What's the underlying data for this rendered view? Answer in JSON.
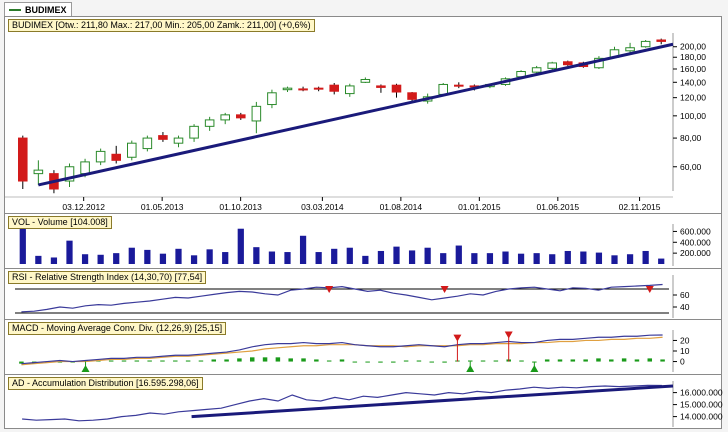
{
  "tab": {
    "label": "BUDIMEX",
    "color": "#2a7a2a"
  },
  "colors": {
    "up": "#2a8a2a",
    "down": "#d21a1a",
    "trend": "#1a1a7a",
    "volume": "#1a1a9a",
    "line": "#3a3a9a",
    "signal": "#e0a040",
    "hist": "#1a9a1a"
  },
  "chart_data": [
    {
      "type": "candlestick",
      "title": "BUDIMEX [Otw.: 211,80  Max.: 217,00  Min.: 205,00  Zamk.: 211,00] (+0,6%)",
      "x_tick_labels": [
        "03.12.2012",
        "01.05.2013",
        "01.10.2013",
        "03.03.2014",
        "01.08.2014",
        "01.01.2015",
        "01.06.2015",
        "02.11.2015"
      ],
      "y_tick_labels": [
        "60,00",
        "80,00",
        "100,00",
        "120,00",
        "140,00",
        "160,00",
        "180,00",
        "200,00"
      ],
      "y_ticks": [
        60,
        80,
        100,
        120,
        140,
        160,
        180,
        200
      ],
      "scale": "log",
      "ylim": [
        48,
        225
      ],
      "candles": [
        [
          80,
          82,
          48,
          52
        ],
        [
          56,
          64,
          50,
          58
        ],
        [
          56,
          58,
          46,
          48
        ],
        [
          52,
          62,
          49,
          60
        ],
        [
          56,
          65,
          54,
          63
        ],
        [
          63,
          72,
          61,
          70
        ],
        [
          68,
          74,
          62,
          64
        ],
        [
          66,
          78,
          64,
          76
        ],
        [
          72,
          82,
          70,
          80
        ],
        [
          82,
          85,
          77,
          79
        ],
        [
          76,
          82,
          73,
          80
        ],
        [
          80,
          92,
          77,
          90
        ],
        [
          90,
          99,
          86,
          96
        ],
        [
          96,
          103,
          92,
          101
        ],
        [
          101,
          103,
          96,
          98
        ],
        [
          95,
          115,
          84,
          110
        ],
        [
          112,
          130,
          108,
          126
        ],
        [
          130,
          134,
          127,
          132
        ],
        [
          131,
          134,
          128,
          130
        ],
        [
          132,
          134,
          128,
          131
        ],
        [
          136,
          139,
          124,
          128
        ],
        [
          125,
          138,
          121,
          135
        ],
        [
          140,
          147,
          139,
          144
        ],
        [
          135,
          137,
          126,
          133
        ],
        [
          136,
          138,
          120,
          127
        ],
        [
          126,
          127,
          115,
          118
        ],
        [
          116,
          125,
          113,
          121
        ],
        [
          124,
          139,
          123,
          137
        ],
        [
          136,
          140,
          132,
          135
        ],
        [
          135,
          137,
          129,
          134
        ],
        [
          134,
          138,
          132,
          137
        ],
        [
          137,
          147,
          135,
          145
        ],
        [
          148,
          158,
          146,
          156
        ],
        [
          155,
          165,
          152,
          162
        ],
        [
          161,
          172,
          159,
          170
        ],
        [
          172,
          174,
          165,
          167
        ],
        [
          170,
          172,
          162,
          164
        ],
        [
          162,
          182,
          160,
          178
        ],
        [
          180,
          200,
          178,
          194
        ],
        [
          192,
          208,
          188,
          198
        ],
        [
          200,
          214,
          198,
          211
        ],
        [
          214,
          217,
          205,
          211
        ]
      ],
      "trendline": [
        [
          "03.12.2012",
          50
        ],
        [
          "02.11.2015",
          195
        ]
      ]
    },
    {
      "type": "bar",
      "title": "VOL - Volume [104.008]",
      "y_tick_labels": [
        "200.000",
        "400.000",
        "600.000"
      ],
      "y_ticks": [
        200000,
        400000,
        600000
      ],
      "ylim": [
        0,
        700000
      ],
      "values": [
        650000,
        150000,
        120000,
        430000,
        180000,
        170000,
        200000,
        300000,
        260000,
        190000,
        280000,
        160000,
        270000,
        220000,
        650000,
        310000,
        230000,
        220000,
        520000,
        220000,
        280000,
        300000,
        150000,
        240000,
        320000,
        250000,
        300000,
        200000,
        340000,
        200000,
        200000,
        230000,
        190000,
        200000,
        180000,
        240000,
        230000,
        210000,
        160000,
        180000,
        240000,
        100000
      ]
    },
    {
      "type": "line",
      "title": "RSI - Relative Strength Index (14,30,70) [77,54]",
      "y_tick_labels": [
        "40",
        "60"
      ],
      "y_ticks": [
        40,
        60
      ],
      "ylim": [
        25,
        90
      ],
      "values": [
        32,
        33,
        36,
        40,
        38,
        42,
        44,
        43,
        46,
        48,
        50,
        53,
        56,
        55,
        58,
        61,
        64,
        66,
        65,
        62,
        60,
        68,
        70,
        73,
        72,
        74,
        70,
        66,
        68,
        63,
        60,
        56,
        52,
        55,
        58,
        62,
        60,
        66,
        70,
        72,
        73,
        70,
        67,
        72,
        71,
        68,
        73,
        74,
        75,
        76,
        77.54
      ],
      "levels": [
        30,
        70
      ],
      "sell_signals": [
        24,
        33,
        49
      ]
    },
    {
      "type": "line",
      "title": "MACD - Moving Average Conv. Div. (12,26,9) [25,15]",
      "y_tick_labels": [
        "0",
        "10",
        "20"
      ],
      "y_ticks": [
        0,
        10,
        20
      ],
      "ylim": [
        -8,
        28
      ],
      "macd": [
        -2,
        -1,
        0,
        1,
        0,
        1,
        2,
        3,
        3,
        4,
        4,
        5,
        6,
        6,
        7,
        8,
        9,
        11,
        14,
        16,
        17,
        17,
        18,
        17,
        17,
        18,
        16,
        15,
        14,
        14,
        15,
        16,
        15,
        14,
        16,
        17,
        17,
        18,
        19,
        18,
        18,
        20,
        21,
        21,
        22,
        23,
        23,
        24,
        24,
        25,
        25.15
      ],
      "signal": [
        -3,
        -2,
        -1,
        0,
        0,
        0,
        1,
        2,
        2,
        3,
        3,
        4,
        5,
        5,
        6,
        7,
        8,
        9,
        10,
        12,
        13,
        14,
        15,
        15,
        16,
        16,
        16,
        15,
        15,
        15,
        14,
        15,
        15,
        15,
        15,
        16,
        16,
        17,
        17,
        17,
        18,
        18,
        19,
        19,
        20,
        20,
        21,
        21,
        22,
        22,
        23
      ],
      "histogram": [
        -2,
        -2,
        -1,
        -1,
        0,
        1,
        1,
        1,
        1,
        1,
        1,
        1,
        1,
        1,
        1,
        2,
        2,
        3,
        4,
        4,
        4,
        3,
        3,
        2,
        1,
        2,
        0,
        0,
        -1,
        -1,
        1,
        1,
        0,
        -1,
        1,
        1,
        1,
        1,
        2,
        1,
        0,
        2,
        2,
        2,
        2,
        3,
        2,
        3,
        2,
        3,
        2
      ],
      "sell_signals": [
        34,
        38
      ],
      "buy_signals": [
        5,
        35,
        40
      ]
    },
    {
      "type": "line",
      "title": "AD - Accumulation Distribution [16.595.298,06]",
      "y_tick_labels": [
        "14.000.000",
        "15.000.000",
        "16.000.000"
      ],
      "y_ticks": [
        14000000,
        15000000,
        16000000
      ],
      "ylim": [
        13300000,
        16800000
      ],
      "values": [
        13800000,
        13700000,
        13750000,
        13800000,
        13650000,
        13700000,
        13800000,
        14000000,
        14100000,
        14300000,
        14200000,
        14400000,
        14500000,
        14600000,
        14700000,
        15000000,
        15300000,
        15500000,
        15300000,
        15800000,
        15400000,
        15300000,
        15600000,
        15400000,
        15700000,
        15600000,
        15800000,
        16000000,
        15900000,
        15800000,
        16000000,
        15900000,
        16100000,
        16000000,
        16200000,
        16300000,
        16450000,
        16350000,
        16450000,
        16400000,
        16500000,
        16550000,
        16500000,
        16550000,
        16600000,
        16595298
      ],
      "trendline": [
        14000000,
        16550000
      ]
    }
  ]
}
